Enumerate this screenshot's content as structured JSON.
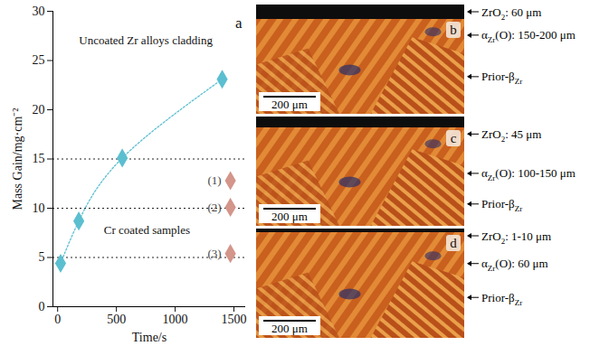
{
  "chart_data": {
    "type": "scatter",
    "panel_label": "a",
    "x_label": "Time/s",
    "y_label": "Mass Gain/mg·cm⁻²",
    "xlim": [
      -40,
      1600
    ],
    "xticks": [
      0,
      500,
      1000,
      1500
    ],
    "ylim": [
      0,
      30
    ],
    "yticks": [
      0,
      5,
      10,
      15,
      20,
      25,
      30
    ],
    "reference_lines": [
      5,
      10,
      15
    ],
    "series": [
      {
        "name": "Uncoated Zr alloys cladding",
        "color": "#5bbfd0",
        "marker": "diamond",
        "line_style": "dotted",
        "x": [
          25,
          180,
          550,
          1400
        ],
        "values": [
          4.4,
          8.7,
          15.1,
          23.1
        ],
        "name_position": {
          "x": 750,
          "y": 27
        }
      },
      {
        "name": "Cr coated samples",
        "color": "#d4958a",
        "marker": "diamond",
        "x": [
          1470,
          1470,
          1470
        ],
        "values": [
          12.8,
          10.1,
          5.4
        ],
        "point_labels": [
          "(1)",
          "(2)",
          "(3)"
        ],
        "name_position": {
          "x": 760,
          "y": 7.8
        }
      }
    ]
  },
  "micrographs": [
    {
      "panel_label": "b",
      "scale_bar": "200 μm",
      "layers": [
        {
          "base": "ZrO",
          "sub": "2",
          "rest": ": 60 μm"
        },
        {
          "base": "α",
          "sub": "Zr",
          "rest": "(O): 150-200 μm"
        },
        {
          "base": "Prior-β",
          "sub": "Zr"
        }
      ]
    },
    {
      "panel_label": "c",
      "scale_bar": "200 μm",
      "layers": [
        {
          "base": "ZrO",
          "sub": "2",
          "rest": ": 45 μm"
        },
        {
          "base": "α",
          "sub": "Zr",
          "rest": "(O): 100-150 μm"
        },
        {
          "base": "Prior-β",
          "sub": "Zr"
        }
      ]
    },
    {
      "panel_label": "d",
      "scale_bar": "200 μm",
      "layers": [
        {
          "base": "ZrO",
          "sub": "2",
          "rest": ": 1-10 μm"
        },
        {
          "base": "α",
          "sub": "Zr",
          "rest": "(O): 60 μm"
        },
        {
          "base": "Prior-β",
          "sub": "Zr"
        }
      ]
    }
  ]
}
